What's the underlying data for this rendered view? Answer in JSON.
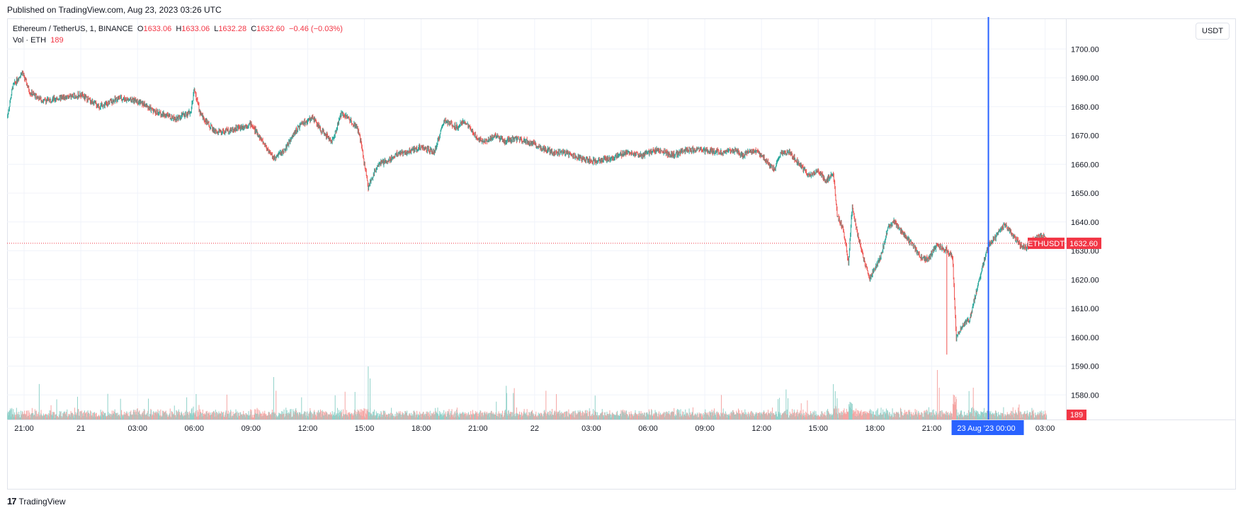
{
  "published": "Published on TradingView.com, Aug 23, 2023 03:26 UTC",
  "legend": {
    "symbol": "Ethereum / TetherUS, 1, BINANCE",
    "o_label": "O",
    "o": "1633.06",
    "h_label": "H",
    "h": "1633.06",
    "l_label": "L",
    "l": "1632.28",
    "c_label": "C",
    "c": "1632.60",
    "change": "−0.46 (−0.03%)",
    "vol_label": "Vol · ETH",
    "vol": "189"
  },
  "currency_button": "USDT",
  "price_tag": {
    "symbol": "ETHUSDT",
    "value": "1632.60"
  },
  "volume_tag": "189",
  "crosshair_label": {
    "date": "23 Aug '23",
    "time": "00:00"
  },
  "footer": {
    "logo": "17",
    "brand": "TradingView"
  },
  "colors": {
    "up": "#26a69a",
    "down": "#ef5350",
    "crosshair": "#2962ff",
    "grid": "#f0f3fa",
    "price_line": "#f23645"
  },
  "chart_data": {
    "type": "line",
    "title": "Ethereum / TetherUS, 1, BINANCE",
    "xlabel": "",
    "ylabel": "",
    "ylim": [
      1570,
      1705
    ],
    "y_ticks": [
      "1700.00",
      "1690.00",
      "1680.00",
      "1670.00",
      "1660.00",
      "1650.00",
      "1640.00",
      "1630.00",
      "1620.00",
      "1610.00",
      "1600.00",
      "1590.00",
      "1580.00"
    ],
    "x_ticks": [
      "21:00",
      "21",
      "03:00",
      "06:00",
      "09:00",
      "12:00",
      "15:00",
      "18:00",
      "21:00",
      "22",
      "03:00",
      "06:00",
      "09:00",
      "12:00",
      "15:00",
      "18:00",
      "21:00",
      "00:00",
      "03:00"
    ],
    "x_tick_hours": [
      21,
      24,
      27,
      30,
      33,
      36,
      39,
      42,
      45,
      48,
      51,
      54,
      57,
      60,
      63,
      66,
      69,
      72,
      75
    ],
    "x_range_hours": [
      20.1,
      76.1
    ],
    "last_price": 1632.6,
    "crosshair_hour": 72,
    "grid": true,
    "series": [
      {
        "name": "ETHUSDT",
        "x": [
          20.1,
          20.4,
          20.9,
          21.3,
          22,
          23,
          24,
          25,
          26,
          27,
          28,
          29,
          29.8,
          30,
          30.3,
          30.7,
          31.2,
          32,
          33,
          33.6,
          34.2,
          34.8,
          35.3,
          35.7,
          36.3,
          36.8,
          37.3,
          37.8,
          38.3,
          38.6,
          38.8,
          39.2,
          39.7,
          40.2,
          40.8,
          41.2,
          42,
          42.7,
          43.2,
          43.9,
          44.3,
          44.6,
          45,
          45.4,
          45.9,
          46.4,
          47,
          47.6,
          48.3,
          49,
          49.7,
          50.5,
          51.2,
          52,
          52.8,
          53.7,
          54.5,
          55.3,
          56,
          57,
          58,
          58.6,
          59,
          59.6,
          60,
          60.4,
          60.7,
          61,
          61.5,
          62,
          62.5,
          63,
          63.4,
          63.8,
          64,
          64.3,
          64.6,
          64.8,
          65,
          65.3,
          65.7,
          66,
          66.3,
          66.7,
          67,
          67.5,
          68,
          68.4,
          68.8,
          69.3,
          69.8,
          70.1,
          70.3,
          70.6,
          71,
          71.3,
          71.6,
          72,
          72.3,
          72.6,
          72.9,
          73.3,
          73.7,
          74,
          74.4,
          74.8,
          75.1
        ],
        "y": [
          1676,
          1687,
          1692,
          1685,
          1682,
          1683,
          1684,
          1680,
          1683,
          1682,
          1678,
          1676,
          1678,
          1686,
          1678,
          1674,
          1671,
          1672,
          1674,
          1668,
          1662,
          1665,
          1671,
          1674,
          1676,
          1671,
          1668,
          1678,
          1675,
          1673,
          1668,
          1652,
          1660,
          1661,
          1664,
          1664,
          1666,
          1664,
          1675,
          1673,
          1675,
          1672,
          1669,
          1668,
          1670,
          1668,
          1669,
          1668,
          1666,
          1664,
          1664,
          1662,
          1661,
          1662,
          1664,
          1663,
          1665,
          1663,
          1665,
          1665,
          1664,
          1665,
          1663,
          1665,
          1663,
          1660,
          1658,
          1664,
          1664,
          1660,
          1656,
          1658,
          1654,
          1657,
          1642,
          1638,
          1626,
          1646,
          1638,
          1630,
          1620,
          1624,
          1628,
          1638,
          1640,
          1636,
          1632,
          1628,
          1627,
          1632,
          1630,
          1628,
          1600,
          1604,
          1606,
          1614,
          1622,
          1632,
          1634,
          1637,
          1639,
          1635,
          1632,
          1631,
          1634,
          1635,
          1634
        ]
      }
    ]
  }
}
